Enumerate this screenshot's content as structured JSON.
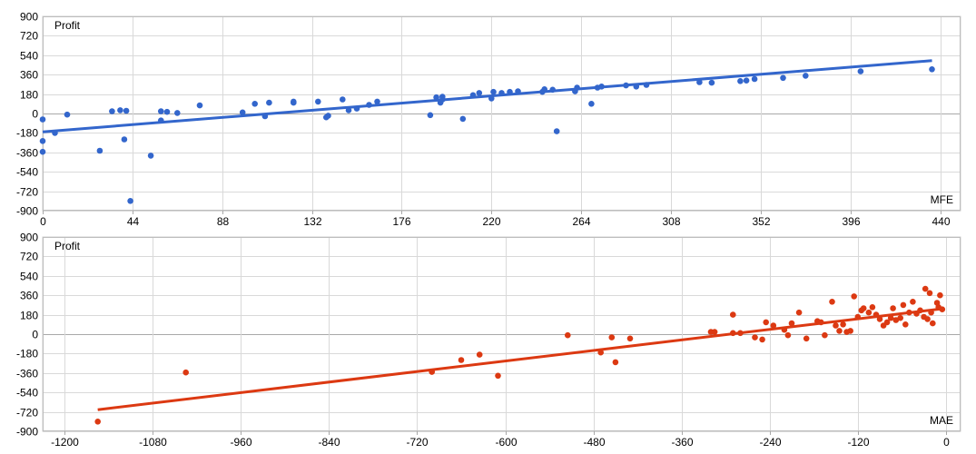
{
  "chart_data": [
    {
      "type": "scatter",
      "ylabel": "Profit",
      "xlabel": "MFE",
      "xlim": [
        0,
        450
      ],
      "ylim": [
        -900,
        900
      ],
      "x_ticks": [
        0,
        44,
        88,
        132,
        176,
        220,
        264,
        308,
        352,
        396,
        440
      ],
      "y_ticks": [
        -900,
        -720,
        -540,
        -360,
        -180,
        0,
        180,
        360,
        540,
        720,
        900
      ],
      "grid": true,
      "color": "#3366cc",
      "trendline": {
        "x": [
          0,
          436
        ],
        "y": [
          -170,
          490
        ]
      },
      "points": [
        [
          0,
          -55
        ],
        [
          0,
          -255
        ],
        [
          0,
          -355
        ],
        [
          6,
          -180
        ],
        [
          12,
          -10
        ],
        [
          28,
          -345
        ],
        [
          34,
          20
        ],
        [
          38,
          30
        ],
        [
          40,
          -240
        ],
        [
          41,
          25
        ],
        [
          43,
          -810
        ],
        [
          53,
          -390
        ],
        [
          58,
          20
        ],
        [
          58,
          -65
        ],
        [
          61,
          15
        ],
        [
          66,
          5
        ],
        [
          77,
          75
        ],
        [
          98,
          10
        ],
        [
          104,
          90
        ],
        [
          109,
          -25
        ],
        [
          111,
          100
        ],
        [
          123,
          100
        ],
        [
          123,
          110
        ],
        [
          135,
          110
        ],
        [
          139,
          -35
        ],
        [
          140,
          -20
        ],
        [
          147,
          130
        ],
        [
          150,
          30
        ],
        [
          154,
          45
        ],
        [
          160,
          80
        ],
        [
          164,
          110
        ],
        [
          190,
          -15
        ],
        [
          193,
          150
        ],
        [
          195,
          100
        ],
        [
          196,
          155
        ],
        [
          196,
          130
        ],
        [
          206,
          -50
        ],
        [
          211,
          170
        ],
        [
          214,
          190
        ],
        [
          220,
          140
        ],
        [
          221,
          200
        ],
        [
          225,
          190
        ],
        [
          229,
          200
        ],
        [
          233,
          205
        ],
        [
          245,
          200
        ],
        [
          246,
          225
        ],
        [
          250,
          220
        ],
        [
          252,
          -165
        ],
        [
          261,
          205
        ],
        [
          262,
          240
        ],
        [
          269,
          90
        ],
        [
          272,
          240
        ],
        [
          274,
          250
        ],
        [
          286,
          260
        ],
        [
          291,
          250
        ],
        [
          296,
          265
        ],
        [
          322,
          290
        ],
        [
          328,
          285
        ],
        [
          342,
          300
        ],
        [
          345,
          305
        ],
        [
          349,
          320
        ],
        [
          363,
          330
        ],
        [
          374,
          350
        ],
        [
          401,
          390
        ],
        [
          436,
          410
        ]
      ]
    },
    {
      "type": "scatter",
      "ylabel": "Profit",
      "xlabel": "MAE",
      "xlim": [
        -1230,
        20
      ],
      "ylim": [
        -900,
        900
      ],
      "x_ticks": [
        -1200,
        -1080,
        -960,
        -840,
        -720,
        -600,
        -480,
        -360,
        -240,
        -120,
        0
      ],
      "y_ticks": [
        -900,
        -720,
        -540,
        -360,
        -180,
        0,
        180,
        360,
        540,
        720,
        900
      ],
      "grid": true,
      "color": "#dc3912",
      "trendline": {
        "x": [
          -1155,
          -5
        ],
        "y": [
          -700,
          235
        ]
      },
      "points": [
        [
          -1155,
          -810
        ],
        [
          -1035,
          -355
        ],
        [
          -700,
          -350
        ],
        [
          -660,
          -240
        ],
        [
          -635,
          -190
        ],
        [
          -610,
          -385
        ],
        [
          -515,
          -10
        ],
        [
          -470,
          -170
        ],
        [
          -455,
          -30
        ],
        [
          -450,
          -260
        ],
        [
          -430,
          -40
        ],
        [
          -320,
          20
        ],
        [
          -315,
          20
        ],
        [
          -290,
          180
        ],
        [
          -290,
          10
        ],
        [
          -280,
          10
        ],
        [
          -260,
          -30
        ],
        [
          -250,
          -50
        ],
        [
          -245,
          110
        ],
        [
          -235,
          80
        ],
        [
          -220,
          40
        ],
        [
          -215,
          -10
        ],
        [
          -210,
          100
        ],
        [
          -200,
          200
        ],
        [
          -190,
          -40
        ],
        [
          -175,
          120
        ],
        [
          -170,
          110
        ],
        [
          -165,
          -10
        ],
        [
          -155,
          300
        ],
        [
          -150,
          80
        ],
        [
          -145,
          30
        ],
        [
          -140,
          90
        ],
        [
          -135,
          20
        ],
        [
          -130,
          30
        ],
        [
          -125,
          350
        ],
        [
          -120,
          160
        ],
        [
          -115,
          220
        ],
        [
          -112,
          240
        ],
        [
          -105,
          200
        ],
        [
          -100,
          250
        ],
        [
          -95,
          180
        ],
        [
          -90,
          140
        ],
        [
          -85,
          80
        ],
        [
          -80,
          110
        ],
        [
          -75,
          150
        ],
        [
          -72,
          240
        ],
        [
          -68,
          130
        ],
        [
          -62,
          150
        ],
        [
          -58,
          270
        ],
        [
          -55,
          90
        ],
        [
          -50,
          200
        ],
        [
          -45,
          300
        ],
        [
          -40,
          190
        ],
        [
          -35,
          220
        ],
        [
          -30,
          160
        ],
        [
          -28,
          420
        ],
        [
          -25,
          140
        ],
        [
          -22,
          380
        ],
        [
          -20,
          200
        ],
        [
          -18,
          100
        ],
        [
          -12,
          290
        ],
        [
          -10,
          250
        ],
        [
          -8,
          360
        ],
        [
          -5,
          230
        ]
      ]
    }
  ]
}
